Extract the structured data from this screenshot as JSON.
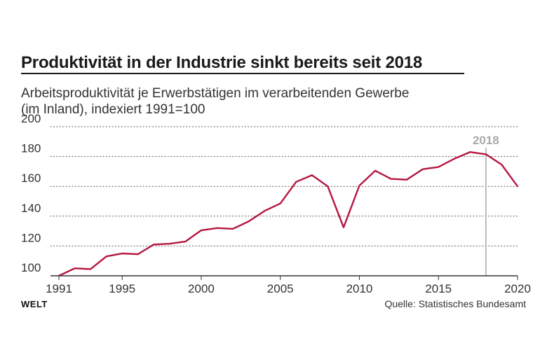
{
  "header": {
    "title": "Produktivität in der Industrie sinkt bereits seit 2018",
    "subtitle_line1": "Arbeitsproduktivität je Erwerbstätigen im verarbeitenden Gewerbe",
    "subtitle_line2": "(im Inland), indexiert 1991=100"
  },
  "footer": {
    "brand": "WELT",
    "source": "Quelle: Statistisches Bundesamt"
  },
  "colors": {
    "line": "#b5163f",
    "marker": "#aaaaaa",
    "grid": "#555555",
    "axis": "#333333"
  },
  "chart_data": {
    "type": "line",
    "title": "Produktivität in der Industrie sinkt bereits seit 2018",
    "subtitle": "Arbeitsproduktivität je Erwerbstätigen im verarbeitenden Gewerbe (im Inland), indexiert 1991=100",
    "xlabel": "",
    "ylabel": "",
    "xlim": [
      1991,
      2020
    ],
    "ylim": [
      100,
      200
    ],
    "yticks": [
      100,
      120,
      140,
      160,
      180,
      200
    ],
    "xticks": [
      1991,
      1995,
      2000,
      2005,
      2010,
      2015,
      2020
    ],
    "grid": "horizontal-dotted",
    "x": [
      1991,
      1992,
      1993,
      1994,
      1995,
      1996,
      1997,
      1998,
      1999,
      2000,
      2001,
      2002,
      2003,
      2004,
      2005,
      2006,
      2007,
      2008,
      2009,
      2010,
      2011,
      2012,
      2013,
      2014,
      2015,
      2016,
      2017,
      2018,
      2019,
      2020
    ],
    "series": [
      {
        "values": [
          100,
          105,
          104.5,
          113,
          115,
          114.5,
          121,
          121.5,
          123,
          130.5,
          132,
          131.5,
          136.5,
          143.5,
          148.5,
          163,
          167.5,
          160,
          132.5,
          160.5,
          170.5,
          165,
          164.5,
          171.5,
          173,
          178.5,
          183,
          181.5,
          174.5,
          160
        ]
      }
    ],
    "annotations": [
      {
        "x": 2018,
        "label": "2018"
      }
    ]
  }
}
